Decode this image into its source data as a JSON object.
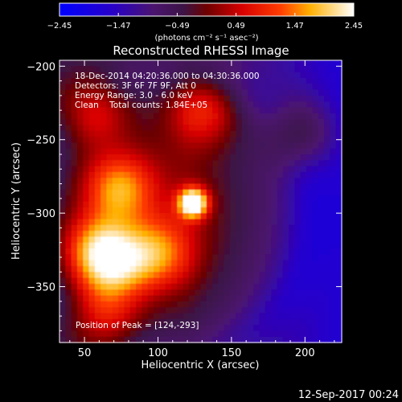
{
  "chart_data": {
    "type": "heatmap",
    "title": "Reconstructed RHESSI Image",
    "xlabel": "Heliocentric X (arcsec)",
    "ylabel": "Heliocentric Y (arcsec)",
    "xlim": [
      33,
      225
    ],
    "ylim": [
      -388,
      -196
    ],
    "x_ticks": [
      50,
      100,
      150,
      200
    ],
    "y_ticks": [
      -200,
      -250,
      -300,
      -350
    ],
    "colormap": "IDL rainbow+white (blue-purple-red-yellow-white)",
    "colorbar": {
      "range": [
        -2.45,
        2.45
      ],
      "tick_values": [
        -2.45,
        -1.47,
        -0.49,
        0.49,
        1.47,
        2.45
      ],
      "tick_labels": [
        "−2.45",
        "−1.47",
        "−0.49",
        "0.49",
        "1.47",
        "2.45"
      ],
      "unit_label": "(photons cm⁻² s⁻¹ asec⁻²)"
    },
    "annotations": [
      "18-Dec-2014 04:20:36.000 to 04:30:36.000",
      "Detectors: 3F 6F 7F 9F, Att 0",
      "Energy Range: 3.0 - 6.0 keV",
      "Clean    Total counts: 1.84E+05"
    ],
    "peak_label": "Position of Peak = [124,-293]",
    "peak": {
      "x": 124,
      "y": -293
    },
    "sources": [
      {
        "x": 124,
        "y": -293,
        "peak": 2.45
      },
      {
        "x": 73,
        "y": -283,
        "peak": 1.1
      },
      {
        "x": 58,
        "y": -324,
        "peak": 0.9
      },
      {
        "x": 70,
        "y": -336,
        "peak": 0.85
      },
      {
        "x": 100,
        "y": -328,
        "peak": 0.8
      },
      {
        "x": 132,
        "y": -230,
        "peak": 0.6
      },
      {
        "x": 62,
        "y": -372,
        "peak": 0.55
      },
      {
        "x": 55,
        "y": -230,
        "peak": 0.55
      },
      {
        "x": 196,
        "y": -246,
        "peak": 0.3
      }
    ]
  },
  "footer": {
    "timestamp": "12-Sep-2017 00:24"
  }
}
